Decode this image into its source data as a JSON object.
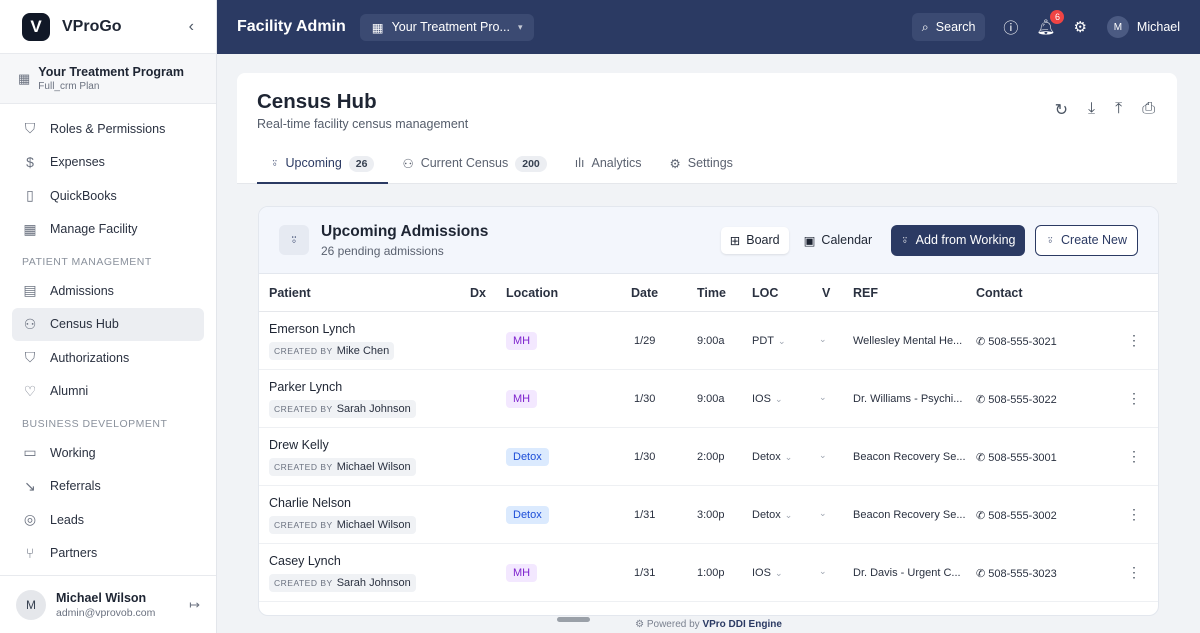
{
  "sidebar": {
    "brand": "VProGo",
    "logo_letter": "V",
    "org": {
      "name": "Your Treatment Program",
      "plan": "Full_crm Plan"
    },
    "items": [
      {
        "label": "Roles & Permissions",
        "icon": "shield-icon"
      },
      {
        "label": "Expenses",
        "icon": "dollar-icon"
      },
      {
        "label": "QuickBooks",
        "icon": "book-icon"
      },
      {
        "label": "Manage Facility",
        "icon": "building-icon"
      }
    ],
    "section1": "PATIENT MANAGEMENT",
    "patient_items": [
      {
        "label": "Admissions",
        "icon": "clipboard-icon"
      },
      {
        "label": "Census Hub",
        "icon": "users-icon",
        "active": true
      },
      {
        "label": "Authorizations",
        "icon": "shield-check-icon"
      },
      {
        "label": "Alumni",
        "icon": "heart-icon"
      }
    ],
    "section2": "BUSINESS DEVELOPMENT",
    "bd_items": [
      {
        "label": "Working",
        "icon": "briefcase-icon"
      },
      {
        "label": "Referrals",
        "icon": "arrow-icon"
      },
      {
        "label": "Leads",
        "icon": "target-icon"
      },
      {
        "label": "Partners",
        "icon": "branch-icon"
      }
    ],
    "user": {
      "initial": "M",
      "name": "Michael Wilson",
      "email": "admin@vprovob.com"
    }
  },
  "topbar": {
    "title": "Facility Admin",
    "program": "Your Treatment Pro...",
    "search": "Search",
    "notifications": "6",
    "user_initial": "M",
    "user": "Michael"
  },
  "page": {
    "title": "Census Hub",
    "subtitle": "Real-time facility census management",
    "tabs": [
      {
        "label": "Upcoming",
        "count": "26"
      },
      {
        "label": "Current Census",
        "count": "200"
      },
      {
        "label": "Analytics"
      },
      {
        "label": "Settings"
      }
    ]
  },
  "panel": {
    "title": "Upcoming Admissions",
    "subtitle": "26 pending admissions",
    "board": "Board",
    "calendar": "Calendar",
    "add_from_working": "Add from Working",
    "create_new": "Create New",
    "columns": [
      "Patient",
      "Dx",
      "Location",
      "Date",
      "Time",
      "LOC",
      "V",
      "REF",
      "Contact"
    ],
    "created_by_label": "CREATED BY",
    "rows": [
      {
        "name": "Emerson Lynch",
        "created_by": "Mike Chen",
        "location": "MH",
        "date": "1/29",
        "time": "9:00a",
        "loc": "PDT",
        "ref": "Wellesley Mental He...",
        "contact": "508-555-3021"
      },
      {
        "name": "Parker Lynch",
        "created_by": "Sarah Johnson",
        "location": "MH",
        "date": "1/30",
        "time": "9:00a",
        "loc": "IOS",
        "ref": "Dr. Williams - Psychi...",
        "contact": "508-555-3022"
      },
      {
        "name": "Drew Kelly",
        "created_by": "Michael Wilson",
        "location": "Detox",
        "date": "1/30",
        "time": "2:00p",
        "loc": "Detox",
        "ref": "Beacon Recovery Se...",
        "contact": "508-555-3001"
      },
      {
        "name": "Charlie Nelson",
        "created_by": "Michael Wilson",
        "location": "Detox",
        "date": "1/31",
        "time": "3:00p",
        "loc": "Detox",
        "ref": "Beacon Recovery Se...",
        "contact": "508-555-3002"
      },
      {
        "name": "Casey Lynch",
        "created_by": "Sarah Johnson",
        "location": "MH",
        "date": "1/31",
        "time": "1:00p",
        "loc": "IOS",
        "ref": "Dr. Davis - Urgent C...",
        "contact": "508-555-3023"
      }
    ]
  },
  "footer": {
    "prefix": "Powered by",
    "engine": "VPro DDI Engine"
  },
  "colors": {
    "navy": "#2b3a63",
    "mh_bg": "#f3e8ff",
    "mh_fg": "#7e22ce",
    "detox_bg": "#dbeafe",
    "detox_fg": "#1d4ed8",
    "badge": "#ef4444"
  }
}
